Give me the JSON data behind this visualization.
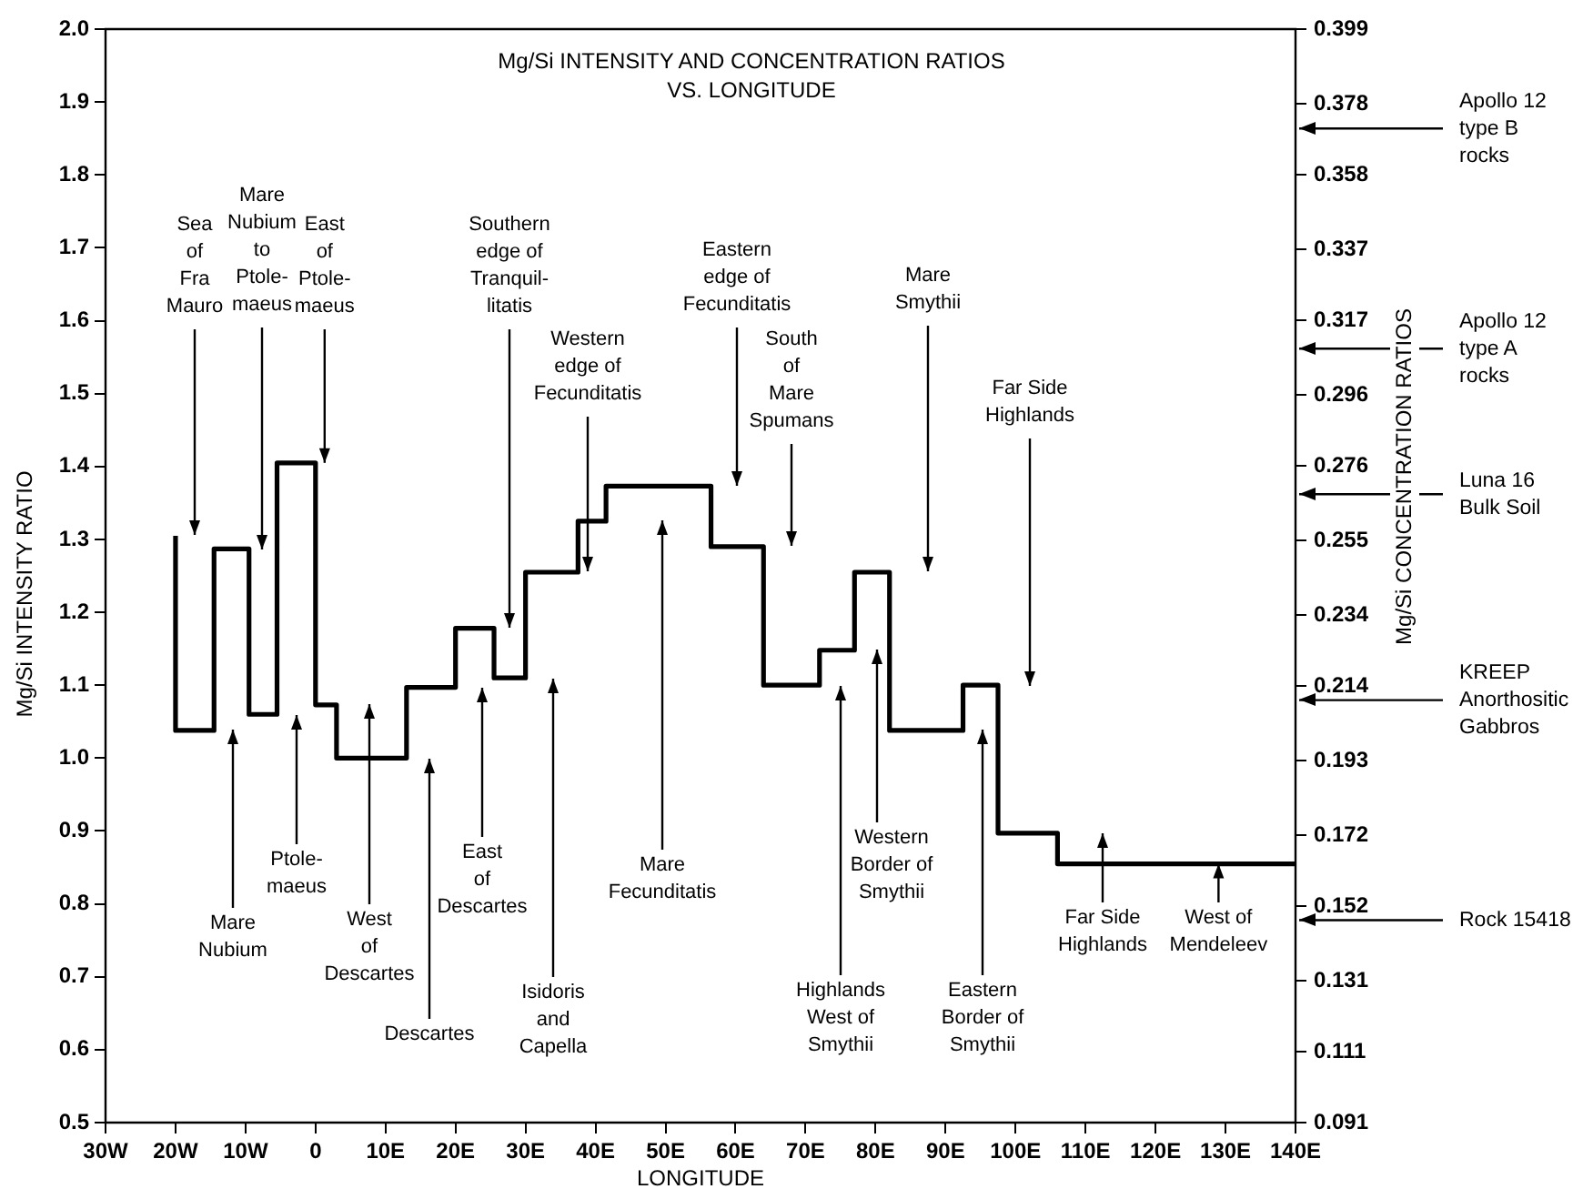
{
  "chart_data": {
    "type": "step",
    "title": "Mg/Si INTENSITY AND CONCENTRATION RATIOS\nVS. LONGITUDE",
    "xlabel": "LONGITUDE",
    "ylabel": "Mg/Si INTENSITY RATIO",
    "y2label": "Mg/Si CONCENTRATION RATIOS",
    "x": [
      -20,
      -14.5,
      -9.5,
      -5.5,
      0,
      3,
      13,
      20,
      25.5,
      30,
      37.5,
      41.5,
      56.5,
      64,
      72,
      77,
      82,
      92.5,
      97.5,
      106,
      118.5,
      140
    ],
    "series": [
      {
        "type": "step",
        "color": "#000000",
        "values": [
          1.305,
          1.038,
          1.287,
          1.06,
          1.405,
          1.073,
          1.0,
          1.097,
          1.178,
          1.11,
          1.255,
          1.325,
          1.373,
          1.29,
          1.1,
          1.148,
          1.255,
          1.038,
          1.1,
          0.897,
          0.855,
          0.855
        ]
      }
    ],
    "xlim": [
      -30,
      140
    ],
    "xticks": [
      {
        "value": -30,
        "label": "30W"
      },
      {
        "value": -20,
        "label": "20W"
      },
      {
        "value": -10,
        "label": "10W"
      },
      0,
      {
        "value": 10,
        "label": "10E"
      },
      {
        "value": 20,
        "label": "20E"
      },
      {
        "value": 30,
        "label": "30E"
      },
      {
        "value": 40,
        "label": "40E"
      },
      {
        "value": 50,
        "label": "50E"
      },
      {
        "value": 60,
        "label": "60E"
      },
      {
        "value": 70,
        "label": "70E"
      },
      {
        "value": 80,
        "label": "80E"
      },
      {
        "value": 90,
        "label": "90E"
      },
      {
        "value": 100,
        "label": "100E"
      },
      {
        "value": 110,
        "label": "110E"
      },
      {
        "value": 120,
        "label": "120E"
      },
      {
        "value": 130,
        "label": "130E"
      },
      {
        "value": 140,
        "label": "140E"
      }
    ],
    "ylim": [
      0.5,
      2.0
    ],
    "yticks": [
      0.5,
      0.6,
      0.7,
      0.8,
      0.9,
      {
        "value": 1.0,
        "label": "1.0"
      },
      1.1,
      1.2,
      1.3,
      1.4,
      1.5,
      1.6,
      1.7,
      1.8,
      1.9,
      {
        "value": 2.0,
        "label": "2.0"
      }
    ],
    "y2lim": [
      0.091,
      0.399
    ],
    "y2ticks": [
      0.091,
      0.111,
      0.131,
      0.152,
      0.172,
      0.193,
      0.214,
      0.234,
      0.255,
      0.276,
      0.296,
      0.317,
      0.337,
      0.358,
      0.378,
      0.399
    ],
    "grid": false,
    "legend": false,
    "marker": "none",
    "line_style": "solid",
    "ref_lines": [
      {
        "axis": "y2",
        "value": 0.371,
        "label": "Apollo 12\ntype B\nrocks"
      },
      {
        "axis": "y2",
        "value": 0.309,
        "label": "Apollo 12\ntype A\nrocks"
      },
      {
        "axis": "y2",
        "value": 0.268,
        "label": "Luna 16\nBulk Soil"
      },
      {
        "axis": "y2",
        "value": 0.21,
        "label": "KREEP\nAnorthositic\nGabbros"
      },
      {
        "axis": "y2",
        "value": 0.148,
        "label": "Rock 15418"
      }
    ],
    "annotations": [
      "Sea\nof\nFra\nMauro",
      "Mare\nNubium\nto\nPtole-\nmaeus",
      {
        "text": "East\nof\nPtole-\nmaeus",
        "x": 1.3,
        "y": 1.405
      },
      "Southern\nedge of\nTranquil-\nlitatis",
      "Western\nedge of\nFecunditatis",
      "Eastern\nedge of\nFecunditatis",
      "South\nof\nMare\nSpumans",
      "Mare\nSmythii",
      "Far Side\nHighlands",
      "Mare\nNubium",
      "Ptole-\nmaeus",
      "West\nof\nDescartes",
      "Descartes",
      "East\nof\nDescartes",
      "Isidoris\nand\nCapella",
      "Mare\nFecunditatis",
      "Highlands\nWest of\nSmythii",
      "Western\nBorder of\nSmythii",
      "Eastern\nBorder of\nSmythii",
      "Far Side\nHighlands",
      {
        "text": "West of\nMendeleev",
        "x": 129,
        "y": 0.855
      }
    ]
  }
}
